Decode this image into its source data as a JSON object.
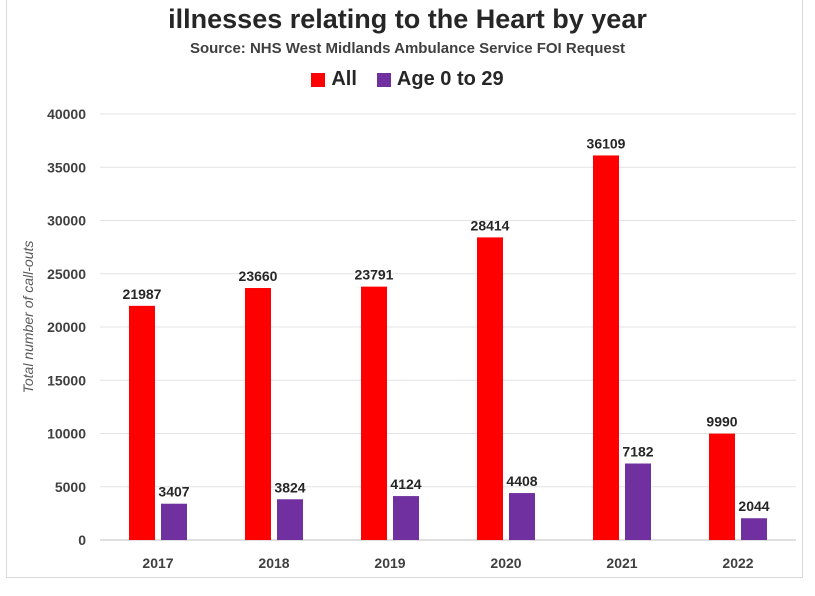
{
  "chart_data": {
    "type": "bar",
    "title": "illnesses relating to the Heart by year",
    "subtitle": "Source: NHS West Midlands Ambulance Service FOI Request",
    "ylabel": "Total number of call-outs",
    "xlabel": "",
    "categories": [
      "2017",
      "2018",
      "2019",
      "2020",
      "2021",
      "2022"
    ],
    "series": [
      {
        "name": "All",
        "color": "#ff0000",
        "values": [
          21987,
          23660,
          23791,
          28414,
          36109,
          9990
        ]
      },
      {
        "name": "Age 0 to 29",
        "color": "#7030a0",
        "values": [
          3407,
          3824,
          4124,
          4408,
          7182,
          2044
        ]
      }
    ],
    "ylim": [
      0,
      40000
    ],
    "yticks": [
      "0",
      "5000",
      "10000",
      "15000",
      "20000",
      "25000",
      "30000",
      "35000",
      "40000"
    ],
    "grid": true,
    "legend_position": "top"
  }
}
